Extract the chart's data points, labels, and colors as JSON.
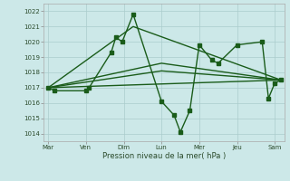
{
  "background_color": "#cce8e8",
  "grid_color": "#aacccc",
  "line_color": "#1a5c1a",
  "marker_color": "#1a5c1a",
  "xlabel": "Pression niveau de la mer( hPa )",
  "ylim": [
    1013.5,
    1022.5
  ],
  "yticks": [
    1014,
    1015,
    1016,
    1017,
    1018,
    1019,
    1020,
    1021,
    1022
  ],
  "xtick_labels": [
    "Mar",
    "Ven",
    "Dim",
    "Lun",
    "Mer",
    "Jeu",
    "Sam"
  ],
  "xtick_positions": [
    0,
    24,
    48,
    72,
    96,
    120,
    144
  ],
  "xlim": [
    -3,
    150
  ],
  "series_main": {
    "x": [
      0,
      4,
      24,
      26,
      40,
      43,
      47,
      54,
      72,
      80,
      84,
      90,
      96,
      104,
      108,
      120,
      136,
      140,
      144,
      148
    ],
    "y": [
      1017.0,
      1016.8,
      1016.8,
      1017.0,
      1019.3,
      1020.3,
      1020.0,
      1021.8,
      1016.1,
      1015.2,
      1014.1,
      1015.5,
      1019.8,
      1018.8,
      1018.6,
      1019.8,
      1020.0,
      1016.3,
      1017.3,
      1017.5
    ]
  },
  "trend1": {
    "x": [
      0,
      148
    ],
    "y": [
      1017.0,
      1017.5
    ]
  },
  "trend2": {
    "x": [
      0,
      72,
      148
    ],
    "y": [
      1017.0,
      1018.1,
      1017.5
    ]
  },
  "trend3": {
    "x": [
      0,
      72,
      148
    ],
    "y": [
      1017.0,
      1018.6,
      1017.5
    ]
  },
  "trend4": {
    "x": [
      0,
      54,
      148
    ],
    "y": [
      1017.0,
      1021.0,
      1017.5
    ]
  }
}
